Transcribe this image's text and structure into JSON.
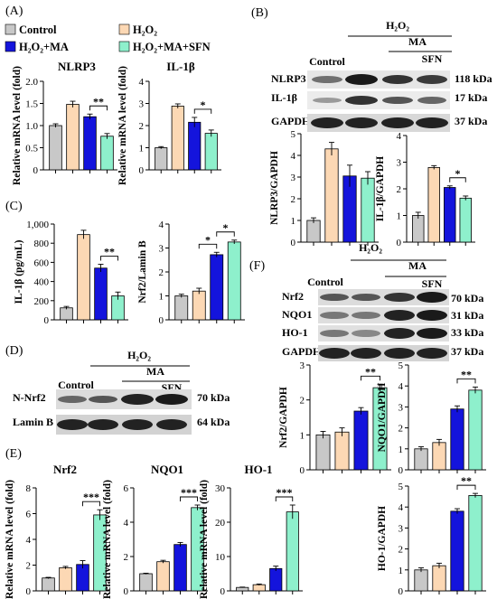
{
  "colors": {
    "control": "#c8c8c8",
    "h2o2": "#fcd8b4",
    "h2o2_ma": "#1414dc",
    "h2o2_ma_sfn": "#8ef0cc"
  },
  "panels": {
    "A": "(A)",
    "B": "(B)",
    "C": "(C)",
    "D": "(D)",
    "E": "(E)",
    "F": "(F)"
  },
  "legend": [
    {
      "key": "control",
      "label": "Control"
    },
    {
      "key": "h2o2",
      "label": "H₂O₂"
    },
    {
      "key": "h2o2_ma",
      "label": "H₂O₂+MA"
    },
    {
      "key": "h2o2_ma_sfn",
      "label": "H₂O₂+MA+SFN"
    }
  ],
  "blots": {
    "B": {
      "h2o2": "H₂O₂",
      "ma": "MA",
      "sfn": "SFN",
      "control": "Control",
      "rows": [
        {
          "label": "NLRP3",
          "size": "118 kDa"
        },
        {
          "label": "IL-1β",
          "size": "17 kDa"
        },
        {
          "label": "GAPDH",
          "size": "37 kDa"
        }
      ]
    },
    "D": {
      "h2o2": "H₂O₂",
      "ma": "MA",
      "sfn": "SFN",
      "control": "Control",
      "rows": [
        {
          "label": "N-Nrf2",
          "size": "70 kDa"
        },
        {
          "label": "Lamin B",
          "size": "64 kDa"
        }
      ]
    },
    "F": {
      "h2o2": "H₂O₂",
      "ma": "MA",
      "sfn": "SFN",
      "control": "Control",
      "rows": [
        {
          "label": "Nrf2",
          "size": "70 kDa"
        },
        {
          "label": "NQO1",
          "size": "31 kDa"
        },
        {
          "label": "HO-1",
          "size": "33 kDa"
        },
        {
          "label": "GAPDH",
          "size": "37 kDa"
        }
      ]
    }
  },
  "chart_data": [
    {
      "id": "A-nlrp3",
      "type": "bar",
      "title": "NLRP3",
      "ylabel": "Relative mRNA level (fold)",
      "ylim": [
        0,
        2
      ],
      "yticks": [
        "0",
        "0.5",
        "1.0",
        "1.5",
        "2.0"
      ],
      "categories": [
        "Control",
        "H₂O₂",
        "H₂O₂+MA",
        "H₂O₂+MA+SFN"
      ],
      "values": [
        1.0,
        1.48,
        1.2,
        0.76
      ],
      "errors": [
        0.04,
        0.07,
        0.06,
        0.06
      ],
      "significance": [
        {
          "from": 2,
          "to": 3,
          "label": "**"
        }
      ]
    },
    {
      "id": "A-il1b",
      "type": "bar",
      "title": "IL-1β",
      "ylabel": "Relative mRNA level (fold)",
      "ylim": [
        0,
        4
      ],
      "yticks": [
        "0",
        "1",
        "2",
        "3",
        "4"
      ],
      "categories": [
        "Control",
        "H₂O₂",
        "H₂O₂+MA",
        "H₂O₂+MA+SFN"
      ],
      "values": [
        1.0,
        2.88,
        2.15,
        1.65
      ],
      "errors": [
        0.05,
        0.1,
        0.22,
        0.15
      ],
      "significance": [
        {
          "from": 2,
          "to": 3,
          "label": "*"
        }
      ]
    },
    {
      "id": "B-nlrp3",
      "type": "bar",
      "title": "",
      "ylabel": "NLRP3/GAPDH",
      "ylim": [
        0,
        5
      ],
      "yticks": [
        "0",
        "1",
        "2",
        "3",
        "4",
        "5"
      ],
      "categories": [
        "Control",
        "H₂O₂",
        "H₂O₂+MA",
        "H₂O₂+MA+SFN"
      ],
      "values": [
        1.0,
        4.3,
        3.05,
        2.95
      ],
      "errors": [
        0.12,
        0.3,
        0.5,
        0.3
      ],
      "significance": []
    },
    {
      "id": "B-il1b",
      "type": "bar",
      "title": "",
      "ylabel": "IL-1β/GAPDH",
      "ylim": [
        0,
        4
      ],
      "yticks": [
        "0",
        "1",
        "2",
        "3",
        "4"
      ],
      "categories": [
        "Control",
        "H₂O₂",
        "H₂O₂+MA",
        "H₂O₂+MA+SFN"
      ],
      "values": [
        1.0,
        2.8,
        2.05,
        1.65
      ],
      "errors": [
        0.12,
        0.07,
        0.06,
        0.08
      ],
      "significance": [
        {
          "from": 2,
          "to": 3,
          "label": "*"
        }
      ]
    },
    {
      "id": "C-il1b",
      "type": "bar",
      "title": "",
      "ylabel": "IL-1β (pg/mL)",
      "ylim": [
        0,
        1000
      ],
      "yticks": [
        "0",
        "200",
        "400",
        "600",
        "800",
        "1,000"
      ],
      "categories": [
        "Control",
        "H₂O₂",
        "H₂O₂+MA",
        "H₂O₂+MA+SFN"
      ],
      "values": [
        125,
        890,
        540,
        250
      ],
      "errors": [
        15,
        45,
        40,
        40
      ],
      "significance": [
        {
          "from": 2,
          "to": 3,
          "label": "**"
        }
      ]
    },
    {
      "id": "C-nrf2-lamin",
      "type": "bar",
      "title": "",
      "ylabel": "Nrf2/Lamin B",
      "ylim": [
        0,
        4
      ],
      "yticks": [
        "0",
        "1",
        "2",
        "3",
        "4"
      ],
      "categories": [
        "Control",
        "H₂O₂",
        "H₂O₂+MA",
        "H₂O₂+MA+SFN"
      ],
      "values": [
        1.0,
        1.2,
        2.72,
        3.25
      ],
      "errors": [
        0.07,
        0.12,
        0.1,
        0.08
      ],
      "significance": [
        {
          "from": 1,
          "to": 2,
          "label": "*"
        },
        {
          "from": 2,
          "to": 3,
          "label": "*"
        }
      ]
    },
    {
      "id": "E-nrf2",
      "type": "bar",
      "title": "Nrf2",
      "ylabel": "Relative mRNA level (fold)",
      "ylim": [
        0,
        8
      ],
      "yticks": [
        "0",
        "2",
        "4",
        "6",
        "8"
      ],
      "categories": [
        "Control",
        "H₂O₂",
        "H₂O₂+MA",
        "H₂O₂+MA+SFN"
      ],
      "values": [
        1.0,
        1.8,
        2.05,
        5.9
      ],
      "errors": [
        0.05,
        0.1,
        0.3,
        0.4
      ],
      "significance": [
        {
          "from": 2,
          "to": 3,
          "label": "***"
        }
      ]
    },
    {
      "id": "E-nqo1",
      "type": "bar",
      "title": "NQO1",
      "ylabel": "Relative mRNA level (fold)",
      "ylim": [
        0,
        6
      ],
      "yticks": [
        "0",
        "2",
        "4",
        "6"
      ],
      "categories": [
        "Control",
        "H₂O₂",
        "H₂O₂+MA",
        "H₂O₂+MA+SFN"
      ],
      "values": [
        1.0,
        1.7,
        2.7,
        4.85
      ],
      "errors": [
        0.03,
        0.08,
        0.12,
        0.15
      ],
      "significance": [
        {
          "from": 2,
          "to": 3,
          "label": "***"
        }
      ]
    },
    {
      "id": "E-ho1",
      "type": "bar",
      "title": "HO-1",
      "ylabel": "Relative mRNA level (fold)",
      "ylim": [
        0,
        30
      ],
      "yticks": [
        "0",
        "10",
        "20",
        "30"
      ],
      "categories": [
        "Control",
        "H₂O₂",
        "H₂O₂+MA",
        "H₂O₂+MA+SFN"
      ],
      "values": [
        1.0,
        1.8,
        6.5,
        23.0
      ],
      "errors": [
        0.1,
        0.2,
        0.7,
        2.0
      ],
      "significance": [
        {
          "from": 2,
          "to": 3,
          "label": "***"
        }
      ]
    },
    {
      "id": "F-nrf2",
      "type": "bar",
      "title": "",
      "ylabel": "Nrf2/GAPDH",
      "ylim": [
        0,
        3
      ],
      "yticks": [
        "0",
        "1",
        "2",
        "3"
      ],
      "categories": [
        "Control",
        "H₂O₂",
        "H₂O₂+MA",
        "H₂O₂+MA+SFN"
      ],
      "values": [
        1.0,
        1.08,
        1.68,
        2.35
      ],
      "errors": [
        0.1,
        0.12,
        0.1,
        0.1
      ],
      "significance": [
        {
          "from": 2,
          "to": 3,
          "label": "**"
        }
      ]
    },
    {
      "id": "F-nqo1",
      "type": "bar",
      "title": "",
      "ylabel": "NQO1/GAPDH",
      "ylim": [
        0,
        5
      ],
      "yticks": [
        "0",
        "1",
        "2",
        "3",
        "4",
        "5"
      ],
      "categories": [
        "Control",
        "H₂O₂",
        "H₂O₂+MA",
        "H₂O₂+MA+SFN"
      ],
      "values": [
        1.0,
        1.3,
        2.9,
        3.8
      ],
      "errors": [
        0.1,
        0.15,
        0.15,
        0.15
      ],
      "significance": [
        {
          "from": 2,
          "to": 3,
          "label": "**"
        }
      ]
    },
    {
      "id": "F-ho1",
      "type": "bar",
      "title": "",
      "ylabel": "HO-1/GAPDH",
      "ylim": [
        0,
        5
      ],
      "yticks": [
        "0",
        "1",
        "2",
        "3",
        "4",
        "5"
      ],
      "categories": [
        "Control",
        "H₂O₂",
        "H₂O₂+MA",
        "H₂O₂+MA+SFN"
      ],
      "values": [
        1.0,
        1.2,
        3.8,
        4.55
      ],
      "errors": [
        0.1,
        0.12,
        0.12,
        0.1
      ],
      "significance": [
        {
          "from": 2,
          "to": 3,
          "label": "**"
        }
      ]
    }
  ]
}
